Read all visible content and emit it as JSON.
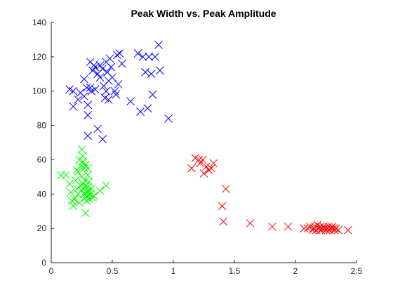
{
  "chart_data": {
    "type": "scatter",
    "title": "Peak Width vs. Peak Amplitude",
    "xlabel": "",
    "ylabel": "",
    "xlim": [
      0,
      2.5
    ],
    "ylim": [
      0,
      140
    ],
    "x_ticks": [
      0,
      0.5,
      1,
      1.5,
      2,
      2.5
    ],
    "x_tick_labels": [
      "0",
      "0.5",
      "1",
      "1.5",
      "2",
      "2.5"
    ],
    "y_ticks": [
      0,
      20,
      40,
      60,
      80,
      100,
      120,
      140
    ],
    "y_tick_labels": [
      "0",
      "20",
      "40",
      "60",
      "80",
      "100",
      "120",
      "140"
    ],
    "grid": false,
    "marker": "x",
    "series": [
      {
        "color": "#0000ff",
        "points": [
          [
            0.15,
            101
          ],
          [
            0.18,
            100
          ],
          [
            0.18,
            91
          ],
          [
            0.22,
            95
          ],
          [
            0.24,
            99
          ],
          [
            0.27,
            97
          ],
          [
            0.27,
            107
          ],
          [
            0.29,
            102
          ],
          [
            0.3,
            92
          ],
          [
            0.3,
            86
          ],
          [
            0.3,
            74
          ],
          [
            0.32,
            117
          ],
          [
            0.32,
            102
          ],
          [
            0.33,
            100
          ],
          [
            0.34,
            112
          ],
          [
            0.35,
            115
          ],
          [
            0.36,
            114
          ],
          [
            0.36,
            101
          ],
          [
            0.38,
            110
          ],
          [
            0.38,
            78
          ],
          [
            0.4,
            115
          ],
          [
            0.4,
            108
          ],
          [
            0.42,
            113
          ],
          [
            0.42,
            72
          ],
          [
            0.43,
            103
          ],
          [
            0.44,
            96
          ],
          [
            0.45,
            117
          ],
          [
            0.45,
            100
          ],
          [
            0.46,
            111
          ],
          [
            0.47,
            106
          ],
          [
            0.47,
            95
          ],
          [
            0.48,
            119
          ],
          [
            0.49,
            114
          ],
          [
            0.5,
            108
          ],
          [
            0.52,
            100
          ],
          [
            0.53,
            98
          ],
          [
            0.54,
            121
          ],
          [
            0.55,
            104
          ],
          [
            0.56,
            122
          ],
          [
            0.58,
            116
          ],
          [
            0.65,
            94
          ],
          [
            0.71,
            122
          ],
          [
            0.73,
            88
          ],
          [
            0.75,
            120
          ],
          [
            0.77,
            111
          ],
          [
            0.79,
            90
          ],
          [
            0.8,
            120
          ],
          [
            0.82,
            110
          ],
          [
            0.83,
            98
          ],
          [
            0.85,
            120
          ],
          [
            0.88,
            127
          ],
          [
            0.89,
            112
          ],
          [
            0.96,
            84
          ]
        ]
      },
      {
        "color": "#00ff00",
        "points": [
          [
            0.08,
            51
          ],
          [
            0.12,
            51
          ],
          [
            0.15,
            46
          ],
          [
            0.16,
            41
          ],
          [
            0.17,
            36
          ],
          [
            0.18,
            33
          ],
          [
            0.19,
            37
          ],
          [
            0.2,
            48
          ],
          [
            0.21,
            54
          ],
          [
            0.21,
            43
          ],
          [
            0.22,
            40
          ],
          [
            0.22,
            53
          ],
          [
            0.23,
            60
          ],
          [
            0.23,
            35
          ],
          [
            0.24,
            56
          ],
          [
            0.24,
            45
          ],
          [
            0.25,
            66
          ],
          [
            0.25,
            50
          ],
          [
            0.25,
            42
          ],
          [
            0.26,
            62
          ],
          [
            0.26,
            59
          ],
          [
            0.26,
            46
          ],
          [
            0.27,
            55
          ],
          [
            0.27,
            44
          ],
          [
            0.27,
            40
          ],
          [
            0.28,
            57
          ],
          [
            0.28,
            48
          ],
          [
            0.28,
            38
          ],
          [
            0.28,
            29
          ],
          [
            0.29,
            41
          ],
          [
            0.29,
            36
          ],
          [
            0.3,
            55
          ],
          [
            0.3,
            51
          ],
          [
            0.3,
            44
          ],
          [
            0.3,
            39
          ],
          [
            0.31,
            47
          ],
          [
            0.31,
            42
          ],
          [
            0.31,
            37
          ],
          [
            0.32,
            40
          ],
          [
            0.33,
            43
          ],
          [
            0.34,
            38
          ],
          [
            0.35,
            39
          ],
          [
            0.4,
            42
          ],
          [
            0.45,
            45
          ]
        ]
      },
      {
        "color": "#ff0000",
        "points": [
          [
            1.15,
            55
          ],
          [
            1.18,
            61
          ],
          [
            1.21,
            60
          ],
          [
            1.22,
            58
          ],
          [
            1.24,
            60
          ],
          [
            1.25,
            52
          ],
          [
            1.27,
            56
          ],
          [
            1.29,
            54
          ],
          [
            1.31,
            55
          ],
          [
            1.33,
            58
          ],
          [
            1.4,
            33
          ],
          [
            1.41,
            24
          ],
          [
            1.43,
            43
          ],
          [
            1.63,
            23
          ],
          [
            1.81,
            21
          ],
          [
            1.94,
            21
          ],
          [
            2.07,
            20
          ],
          [
            2.1,
            20
          ],
          [
            2.12,
            21
          ],
          [
            2.14,
            19
          ],
          [
            2.15,
            20
          ],
          [
            2.16,
            21
          ],
          [
            2.17,
            19
          ],
          [
            2.18,
            22
          ],
          [
            2.19,
            20
          ],
          [
            2.2,
            21
          ],
          [
            2.21,
            19
          ],
          [
            2.22,
            20
          ],
          [
            2.23,
            21
          ],
          [
            2.24,
            20
          ],
          [
            2.25,
            19
          ],
          [
            2.26,
            20
          ],
          [
            2.27,
            21
          ],
          [
            2.28,
            19
          ],
          [
            2.29,
            20
          ],
          [
            2.3,
            21
          ],
          [
            2.31,
            20
          ],
          [
            2.32,
            19
          ],
          [
            2.33,
            20
          ],
          [
            2.35,
            19
          ],
          [
            2.43,
            19
          ]
        ]
      }
    ]
  }
}
